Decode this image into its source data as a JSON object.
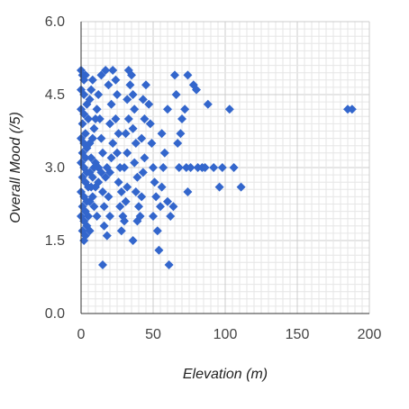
{
  "chart_data": {
    "type": "scatter",
    "title": "",
    "xlabel": "Elevation (m)",
    "ylabel": "Overall Mood (/5)",
    "xlim": [
      0,
      200
    ],
    "ylim": [
      0.0,
      6.0
    ],
    "x_ticks": [
      "0",
      "50",
      "100",
      "150",
      "200"
    ],
    "y_ticks": [
      "0.0",
      "1.5",
      "3.0",
      "4.5",
      "6.0"
    ],
    "grid": true,
    "marker": "diamond",
    "legend": "none",
    "colors": {
      "points": "#3366cc",
      "major_grid": "#cccccc",
      "minor_grid": "#e6e6e6",
      "axis_line": "#333333"
    },
    "series": [
      {
        "points": [
          [
            0,
            5.0
          ],
          [
            1,
            4.9
          ],
          [
            2,
            4.8
          ],
          [
            3,
            4.9
          ],
          [
            0,
            4.6
          ],
          [
            2,
            4.5
          ],
          [
            4,
            4.3
          ],
          [
            0,
            4.2
          ],
          [
            2,
            4.1
          ],
          [
            5,
            4.0
          ],
          [
            1,
            3.9
          ],
          [
            3,
            3.7
          ],
          [
            0,
            3.6
          ],
          [
            2,
            3.5
          ],
          [
            4,
            3.4
          ],
          [
            1,
            3.3
          ],
          [
            3,
            3.2
          ],
          [
            0,
            3.1
          ],
          [
            2,
            3.0
          ],
          [
            4,
            2.9
          ],
          [
            1,
            2.8
          ],
          [
            3,
            2.7
          ],
          [
            5,
            2.6
          ],
          [
            0,
            2.5
          ],
          [
            2,
            2.4
          ],
          [
            4,
            2.3
          ],
          [
            1,
            2.2
          ],
          [
            3,
            2.1
          ],
          [
            0,
            2.0
          ],
          [
            2,
            1.9
          ],
          [
            4,
            1.8
          ],
          [
            1,
            1.7
          ],
          [
            3,
            1.6
          ],
          [
            2,
            1.5
          ],
          [
            6,
            1.7
          ],
          [
            5,
            2.0
          ],
          [
            6,
            2.3
          ],
          [
            7,
            2.6
          ],
          [
            6,
            2.9
          ],
          [
            7,
            3.2
          ],
          [
            6,
            3.5
          ],
          [
            8,
            2.4
          ],
          [
            8,
            2.8
          ],
          [
            9,
            3.0
          ],
          [
            9,
            2.2
          ],
          [
            10,
            2.6
          ],
          [
            10,
            3.1
          ],
          [
            11,
            2.0
          ],
          [
            12,
            2.7
          ],
          [
            12,
            3.0
          ],
          [
            8,
            3.6
          ],
          [
            9,
            3.8
          ],
          [
            10,
            4.0
          ],
          [
            11,
            4.2
          ],
          [
            6,
            4.4
          ],
          [
            7,
            4.6
          ],
          [
            8,
            4.8
          ],
          [
            12,
            4.5
          ],
          [
            13,
            4.0
          ],
          [
            14,
            3.6
          ],
          [
            15,
            3.3
          ],
          [
            14,
            2.9
          ],
          [
            15,
            2.5
          ],
          [
            16,
            2.2
          ],
          [
            17,
            2.8
          ],
          [
            18,
            3.0
          ],
          [
            16,
            1.8
          ],
          [
            15,
            1.0
          ],
          [
            18,
            1.6
          ],
          [
            20,
            2.0
          ],
          [
            19,
            2.4
          ],
          [
            20,
            2.9
          ],
          [
            21,
            3.2
          ],
          [
            22,
            3.5
          ],
          [
            20,
            3.9
          ],
          [
            21,
            4.3
          ],
          [
            19,
            4.7
          ],
          [
            17,
            5.0
          ],
          [
            14,
            4.9
          ],
          [
            22,
            5.0
          ],
          [
            24,
            4.8
          ],
          [
            25,
            4.5
          ],
          [
            24,
            4.0
          ],
          [
            26,
            3.7
          ],
          [
            25,
            3.3
          ],
          [
            27,
            3.0
          ],
          [
            26,
            2.7
          ],
          [
            28,
            2.5
          ],
          [
            27,
            2.2
          ],
          [
            29,
            2.0
          ],
          [
            28,
            1.7
          ],
          [
            30,
            1.9
          ],
          [
            31,
            2.3
          ],
          [
            32,
            2.6
          ],
          [
            30,
            3.0
          ],
          [
            32,
            3.3
          ],
          [
            31,
            3.7
          ],
          [
            33,
            4.0
          ],
          [
            32,
            4.4
          ],
          [
            34,
            4.7
          ],
          [
            33,
            5.0
          ],
          [
            35,
            4.9
          ],
          [
            36,
            4.5
          ],
          [
            37,
            4.2
          ],
          [
            36,
            3.8
          ],
          [
            38,
            3.5
          ],
          [
            37,
            3.1
          ],
          [
            39,
            2.8
          ],
          [
            38,
            2.5
          ],
          [
            40,
            2.2
          ],
          [
            39,
            1.9
          ],
          [
            36,
            1.5
          ],
          [
            41,
            2.0
          ],
          [
            42,
            2.4
          ],
          [
            43,
            2.9
          ],
          [
            44,
            3.2
          ],
          [
            42,
            3.6
          ],
          [
            44,
            4.0
          ],
          [
            43,
            4.4
          ],
          [
            45,
            4.7
          ],
          [
            47,
            4.3
          ],
          [
            48,
            3.9
          ],
          [
            49,
            3.5
          ],
          [
            50,
            3.0
          ],
          [
            51,
            2.7
          ],
          [
            52,
            2.4
          ],
          [
            50,
            2.0
          ],
          [
            53,
            1.7
          ],
          [
            54,
            1.3
          ],
          [
            55,
            2.2
          ],
          [
            56,
            2.6
          ],
          [
            57,
            3.0
          ],
          [
            58,
            3.3
          ],
          [
            56,
            3.7
          ],
          [
            60,
            4.2
          ],
          [
            60,
            2.3
          ],
          [
            61,
            1.0
          ],
          [
            62,
            2.0
          ],
          [
            64,
            2.2
          ],
          [
            65,
            4.9
          ],
          [
            66,
            4.5
          ],
          [
            67,
            3.5
          ],
          [
            68,
            3.0
          ],
          [
            69,
            3.7
          ],
          [
            70,
            4.0
          ],
          [
            72,
            4.2
          ],
          [
            74,
            4.9
          ],
          [
            73,
            3.0
          ],
          [
            74,
            2.5
          ],
          [
            76,
            3.0
          ],
          [
            78,
            4.7
          ],
          [
            80,
            4.6
          ],
          [
            81,
            3.0
          ],
          [
            84,
            3.0
          ],
          [
            86,
            3.0
          ],
          [
            88,
            4.3
          ],
          [
            92,
            3.0
          ],
          [
            96,
            2.6
          ],
          [
            98,
            3.0
          ],
          [
            103,
            4.2
          ],
          [
            106,
            3.0
          ],
          [
            111,
            2.6
          ],
          [
            185,
            4.2
          ],
          [
            188,
            4.2
          ]
        ]
      }
    ]
  }
}
